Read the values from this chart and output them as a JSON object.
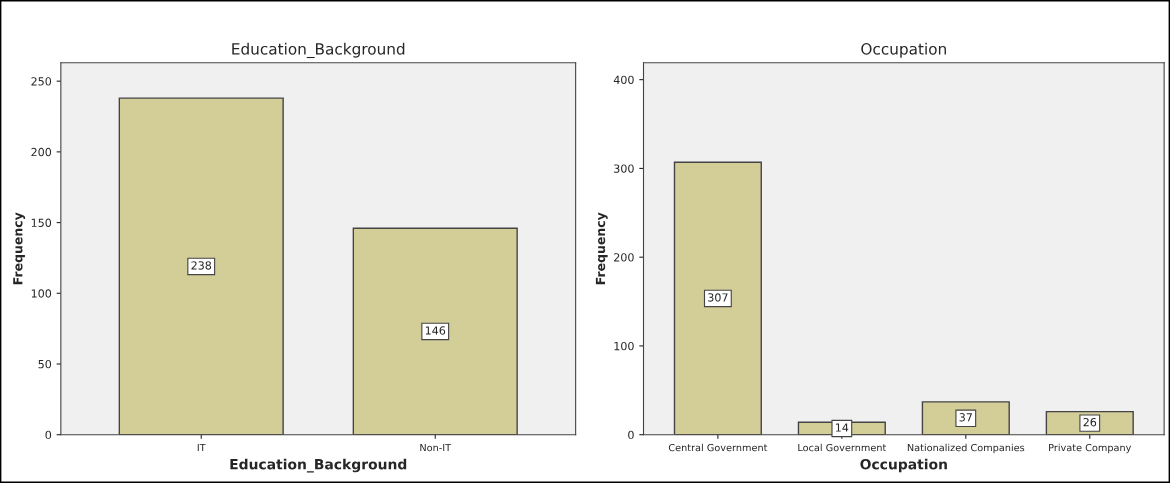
{
  "chart_data": [
    {
      "type": "bar",
      "title": "Education_Background",
      "xlabel": "Education_Background",
      "ylabel": "Frequency",
      "categories": [
        "IT",
        "Non-IT"
      ],
      "values": [
        238,
        146
      ],
      "color": "#d3cd98",
      "ylim": [
        0,
        263
      ],
      "yticks": [
        0,
        50,
        100,
        150,
        200,
        250
      ],
      "data_labels": true,
      "grid": false,
      "legend": false
    },
    {
      "type": "bar",
      "title": "Occupation",
      "xlabel": "Occupation",
      "ylabel": "Frequency",
      "categories": [
        "Central Government",
        "Local Government",
        "Nationalized Companies",
        "Private Company"
      ],
      "values": [
        307,
        14,
        37,
        26
      ],
      "color": "#d3cd98",
      "ylim": [
        0,
        419
      ],
      "yticks": [
        0,
        100,
        200,
        300,
        400
      ],
      "data_labels": true,
      "grid": false,
      "legend": false
    }
  ]
}
